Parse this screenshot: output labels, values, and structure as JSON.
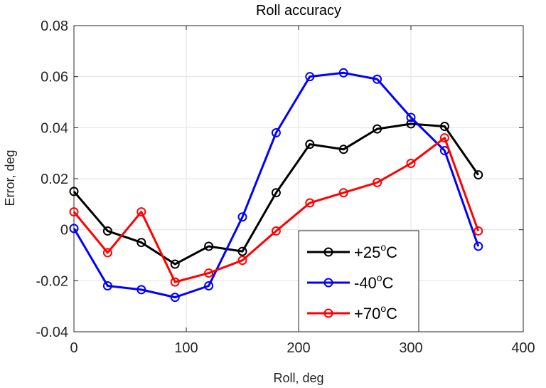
{
  "chart_data": {
    "type": "line",
    "title": "Roll accuracy",
    "xlabel": "Roll, deg",
    "ylabel": "Error, deg",
    "xlim": [
      0,
      400
    ],
    "ylim": [
      -0.04,
      0.08
    ],
    "xticks": [
      0,
      100,
      200,
      300,
      400
    ],
    "yticks": [
      -0.04,
      -0.02,
      0,
      0.02,
      0.04,
      0.06,
      0.08
    ],
    "xtick_labels": [
      "0",
      "100",
      "200",
      "300",
      "400"
    ],
    "ytick_labels": [
      "-0.04",
      "-0.02",
      "0",
      "0.02",
      "0.04",
      "0.06",
      "0.08"
    ],
    "grid": true,
    "legend_position": "lower-right",
    "x": [
      0,
      30,
      60,
      90,
      120,
      150,
      180,
      210,
      240,
      270,
      300,
      330,
      360
    ],
    "series": [
      {
        "name": "+25°C",
        "legend_prefix": "+25",
        "legend_sup": "o",
        "legend_suffix": "C",
        "color": "#000000",
        "values": [
          0.015,
          -0.0005,
          -0.005,
          -0.0135,
          -0.0065,
          -0.0085,
          0.0145,
          0.0335,
          0.0315,
          0.0395,
          0.0415,
          0.0405,
          0.0215
        ]
      },
      {
        "name": "-40°C",
        "legend_prefix": "-40",
        "legend_sup": "o",
        "legend_suffix": "C",
        "color": "#0000ff",
        "values": [
          0.0005,
          -0.022,
          -0.0235,
          -0.0265,
          -0.022,
          0.005,
          0.038,
          0.06,
          0.0615,
          0.059,
          0.044,
          0.031,
          -0.0065
        ]
      },
      {
        "name": "+70°C",
        "legend_prefix": "+70",
        "legend_sup": "o",
        "legend_suffix": "C",
        "color": "#ff0000",
        "values": [
          0.007,
          -0.009,
          0.007,
          -0.0205,
          -0.017,
          -0.012,
          -0.0005,
          0.0105,
          0.0145,
          0.0185,
          0.026,
          0.036,
          -0.0005
        ]
      }
    ]
  }
}
